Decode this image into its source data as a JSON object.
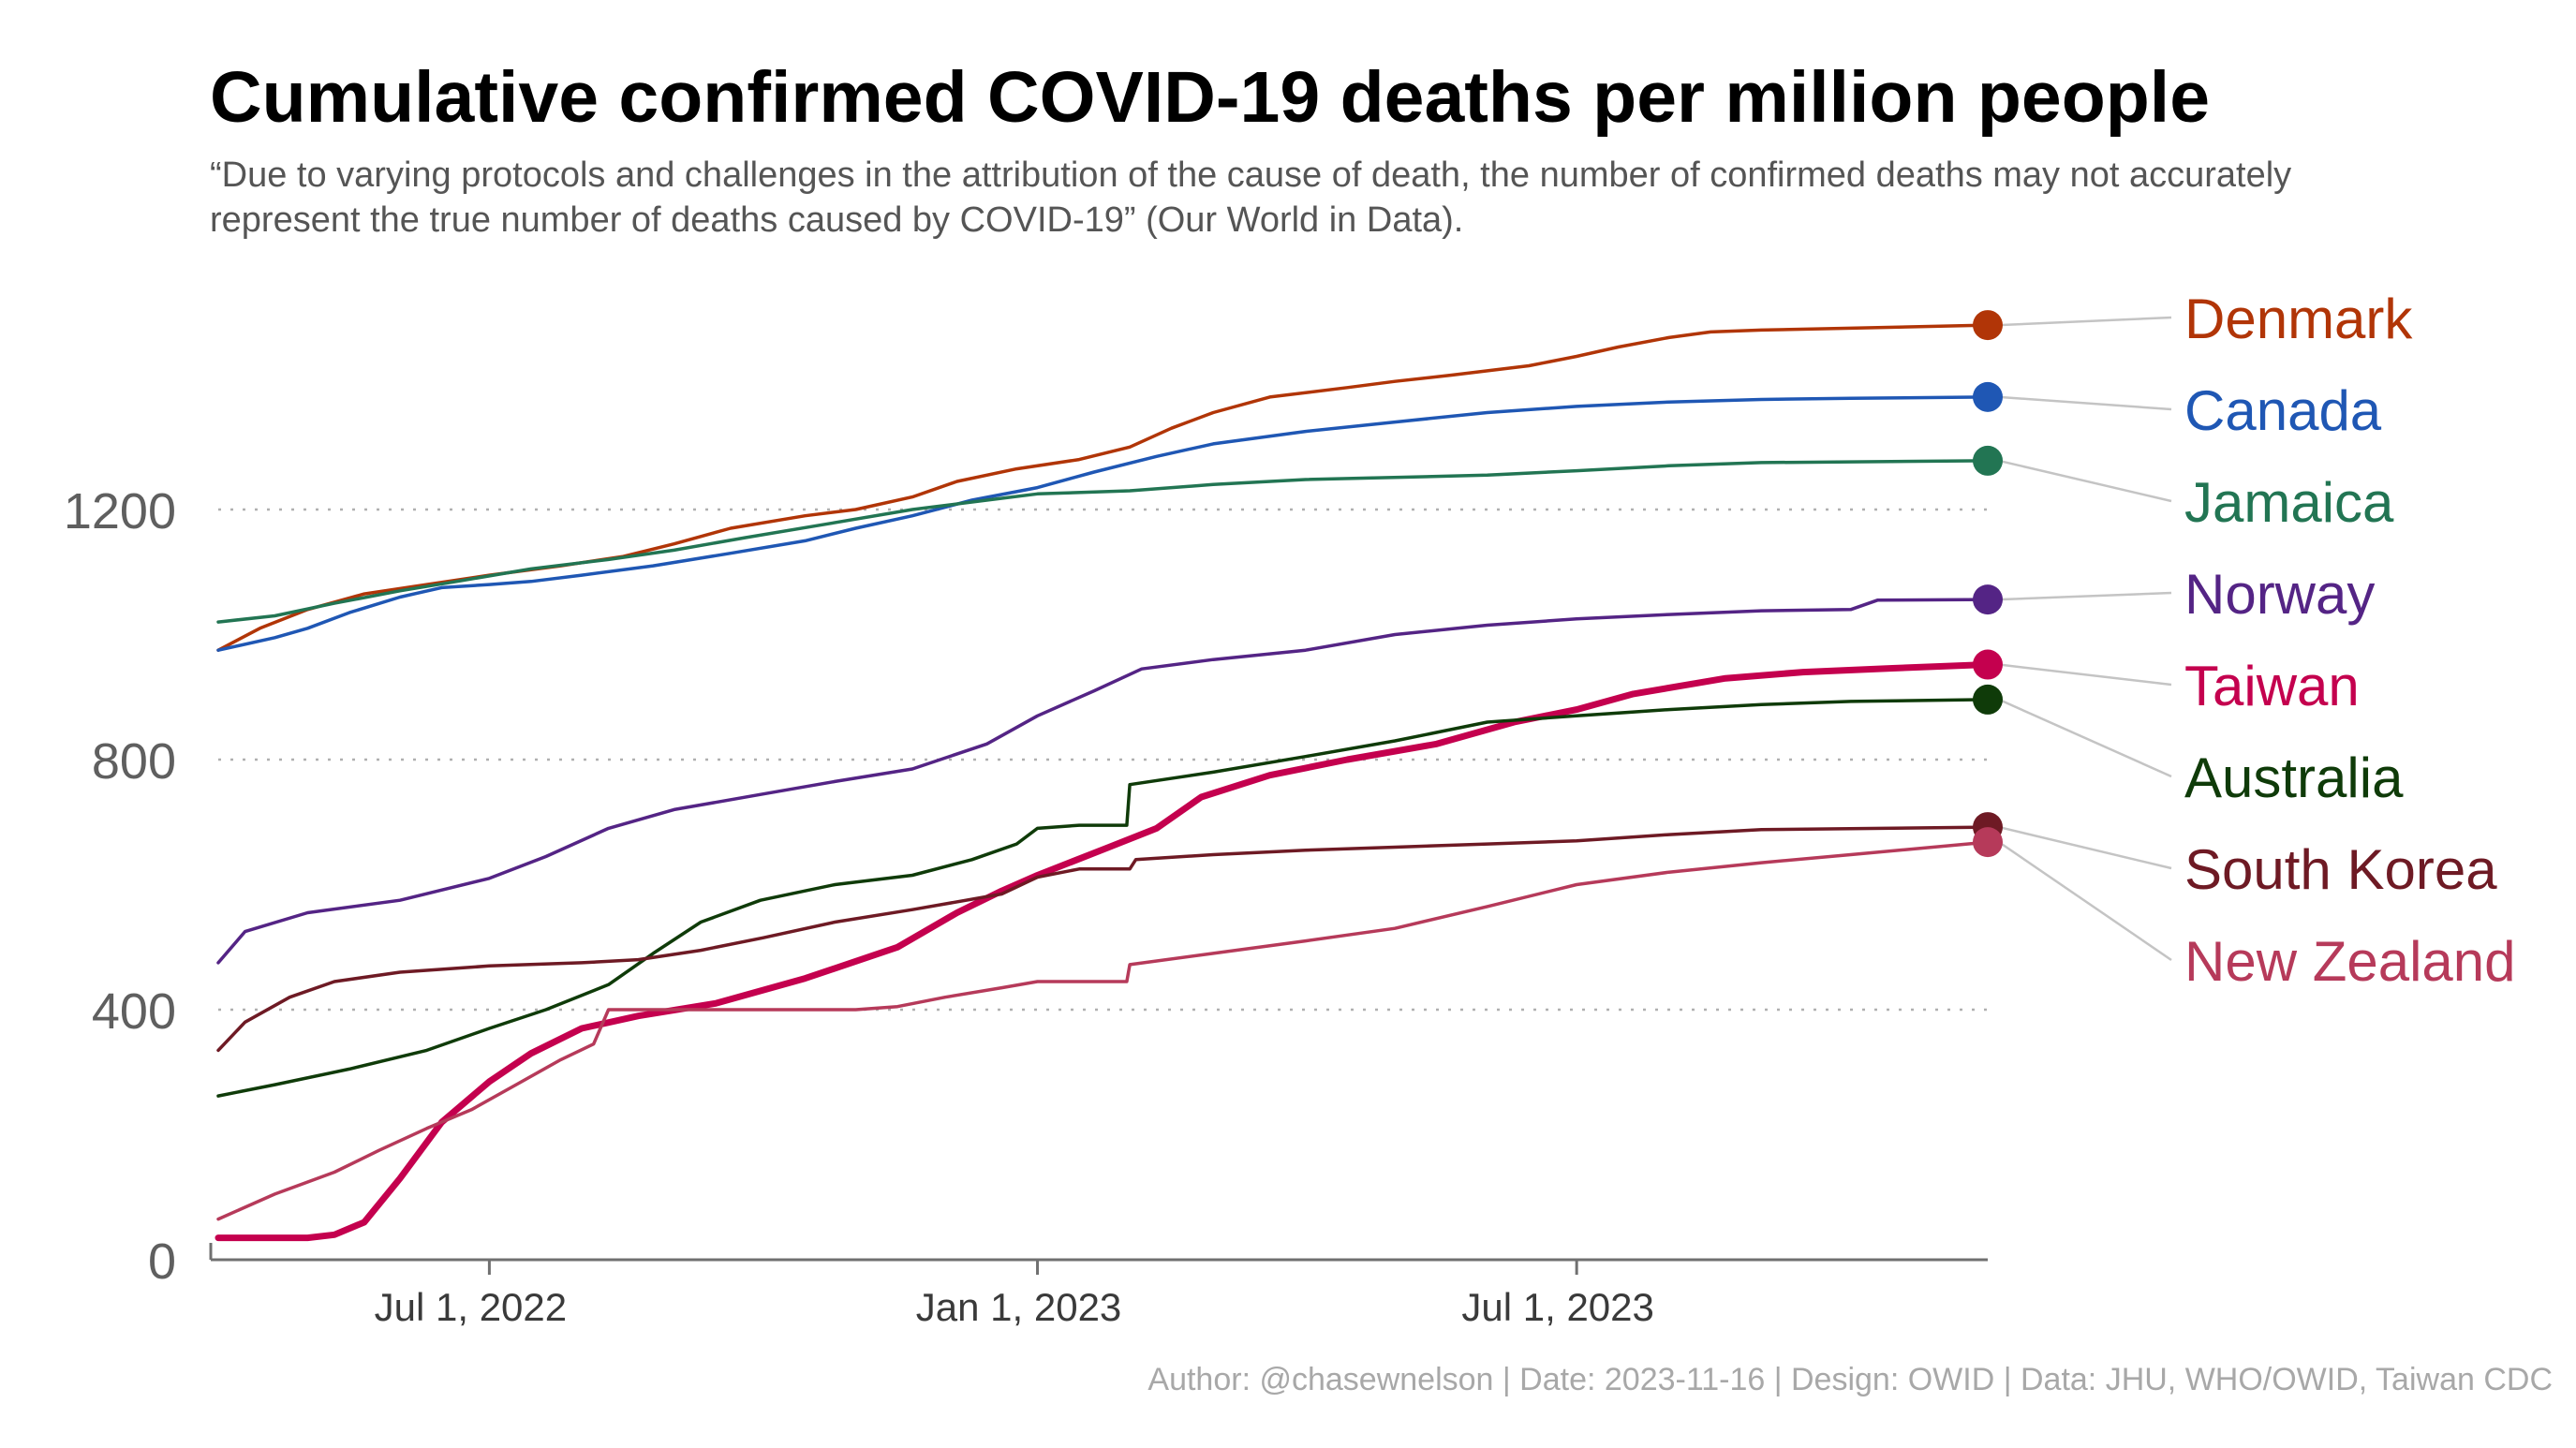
{
  "title": "Cumulative confirmed COVID-19 deaths per million people",
  "subtitle": "“Due to varying protocols and challenges in the attribution of the cause of death, the number of confirmed deaths may not accurately represent the true number of deaths caused by COVID-19” (Our World in Data).",
  "caption": "Author: @chasewnelson | Date: 2023-11-16 | Design: OWID | Data: JHU, WHO/OWID, Taiwan CDC",
  "chart_data": {
    "type": "line",
    "title": "Cumulative confirmed COVID-19 deaths per million people",
    "xlabel": "",
    "ylabel": "",
    "xlim": [
      "2022-04-01",
      "2023-11-16"
    ],
    "ylim": [
      0,
      1560
    ],
    "grid": "horizontal dotted at 400, 800, 1200",
    "legend": "direct labels at right end of lines",
    "x_ticks": [
      {
        "date": "2022-07-01",
        "label": "Jul 1, 2022"
      },
      {
        "date": "2023-01-01",
        "label": "Jan 1, 2023"
      },
      {
        "date": "2023-07-01",
        "label": "Jul 1, 2023"
      }
    ],
    "y_ticks": [
      {
        "value": 0,
        "label": "0"
      },
      {
        "value": 400,
        "label": "400"
      },
      {
        "value": 800,
        "label": "800"
      },
      {
        "value": 1200,
        "label": "1200"
      }
    ],
    "series": [
      {
        "name": "Denmark",
        "color": "#b13507",
        "width": 3.5,
        "points": [
          [
            "2022-04-01",
            975
          ],
          [
            "2022-04-15",
            1010
          ],
          [
            "2022-05-01",
            1040
          ],
          [
            "2022-05-20",
            1065
          ],
          [
            "2022-06-10",
            1080
          ],
          [
            "2022-07-01",
            1095
          ],
          [
            "2022-07-25",
            1110
          ],
          [
            "2022-08-15",
            1125
          ],
          [
            "2022-09-01",
            1145
          ],
          [
            "2022-09-20",
            1170
          ],
          [
            "2022-10-15",
            1190
          ],
          [
            "2022-11-01",
            1200
          ],
          [
            "2022-11-20",
            1220
          ],
          [
            "2022-12-05",
            1245
          ],
          [
            "2022-12-25",
            1265
          ],
          [
            "2023-01-15",
            1280
          ],
          [
            "2023-02-01",
            1300
          ],
          [
            "2023-02-15",
            1330
          ],
          [
            "2023-03-01",
            1355
          ],
          [
            "2023-03-20",
            1380
          ],
          [
            "2023-04-15",
            1395
          ],
          [
            "2023-05-01",
            1405
          ],
          [
            "2023-05-20",
            1415
          ],
          [
            "2023-06-15",
            1430
          ],
          [
            "2023-07-01",
            1445
          ],
          [
            "2023-07-15",
            1460
          ],
          [
            "2023-08-01",
            1475
          ],
          [
            "2023-08-15",
            1484
          ],
          [
            "2023-09-01",
            1487
          ],
          [
            "2023-10-01",
            1490
          ],
          [
            "2023-11-16",
            1495
          ]
        ]
      },
      {
        "name": "Canada",
        "color": "#1f57b4",
        "width": 3.5,
        "points": [
          [
            "2022-04-01",
            975
          ],
          [
            "2022-04-20",
            995
          ],
          [
            "2022-05-01",
            1010
          ],
          [
            "2022-05-15",
            1035
          ],
          [
            "2022-06-01",
            1060
          ],
          [
            "2022-06-15",
            1075
          ],
          [
            "2022-07-01",
            1080
          ],
          [
            "2022-07-15",
            1085
          ],
          [
            "2022-08-01",
            1095
          ],
          [
            "2022-08-25",
            1110
          ],
          [
            "2022-09-20",
            1130
          ],
          [
            "2022-10-15",
            1150
          ],
          [
            "2022-11-01",
            1170
          ],
          [
            "2022-11-20",
            1190
          ],
          [
            "2022-12-10",
            1215
          ],
          [
            "2023-01-01",
            1235
          ],
          [
            "2023-01-20",
            1260
          ],
          [
            "2023-02-10",
            1285
          ],
          [
            "2023-03-01",
            1305
          ],
          [
            "2023-04-01",
            1325
          ],
          [
            "2023-05-01",
            1340
          ],
          [
            "2023-06-01",
            1355
          ],
          [
            "2023-07-01",
            1365
          ],
          [
            "2023-08-01",
            1372
          ],
          [
            "2023-09-01",
            1376
          ],
          [
            "2023-10-01",
            1378
          ],
          [
            "2023-11-16",
            1380
          ]
        ]
      },
      {
        "name": "Jamaica",
        "color": "#227553",
        "width": 3.5,
        "points": [
          [
            "2022-04-01",
            1020
          ],
          [
            "2022-04-20",
            1030
          ],
          [
            "2022-05-10",
            1050
          ],
          [
            "2022-06-01",
            1070
          ],
          [
            "2022-06-20",
            1085
          ],
          [
            "2022-07-15",
            1105
          ],
          [
            "2022-08-10",
            1120
          ],
          [
            "2022-09-01",
            1135
          ],
          [
            "2022-09-25",
            1155
          ],
          [
            "2022-10-20",
            1175
          ],
          [
            "2022-11-20",
            1200
          ],
          [
            "2022-12-15",
            1215
          ],
          [
            "2023-01-01",
            1225
          ],
          [
            "2023-02-01",
            1230
          ],
          [
            "2023-03-01",
            1240
          ],
          [
            "2023-04-01",
            1248
          ],
          [
            "2023-06-01",
            1255
          ],
          [
            "2023-07-01",
            1262
          ],
          [
            "2023-08-01",
            1270
          ],
          [
            "2023-09-01",
            1275
          ],
          [
            "2023-11-16",
            1278
          ]
        ]
      },
      {
        "name": "Norway",
        "color": "#542485",
        "width": 3.5,
        "points": [
          [
            "2022-04-01",
            475
          ],
          [
            "2022-04-10",
            525
          ],
          [
            "2022-05-01",
            555
          ],
          [
            "2022-06-01",
            575
          ],
          [
            "2022-07-01",
            610
          ],
          [
            "2022-07-20",
            645
          ],
          [
            "2022-08-10",
            690
          ],
          [
            "2022-09-01",
            720
          ],
          [
            "2022-10-01",
            745
          ],
          [
            "2022-10-25",
            765
          ],
          [
            "2022-11-20",
            785
          ],
          [
            "2022-12-15",
            825
          ],
          [
            "2023-01-01",
            870
          ],
          [
            "2023-01-20",
            910
          ],
          [
            "2023-02-05",
            945
          ],
          [
            "2023-03-01",
            960
          ],
          [
            "2023-04-01",
            975
          ],
          [
            "2023-05-01",
            1000
          ],
          [
            "2023-06-01",
            1015
          ],
          [
            "2023-07-01",
            1025
          ],
          [
            "2023-08-01",
            1032
          ],
          [
            "2023-09-01",
            1038
          ],
          [
            "2023-10-01",
            1040
          ],
          [
            "2023-10-10",
            1055
          ],
          [
            "2023-11-16",
            1056
          ]
        ]
      },
      {
        "name": "Taiwan",
        "color": "#c4004e",
        "width": 7,
        "points": [
          [
            "2022-04-01",
            35
          ],
          [
            "2022-04-15",
            35
          ],
          [
            "2022-05-01",
            35
          ],
          [
            "2022-05-10",
            40
          ],
          [
            "2022-05-20",
            60
          ],
          [
            "2022-06-01",
            130
          ],
          [
            "2022-06-15",
            220
          ],
          [
            "2022-07-01",
            285
          ],
          [
            "2022-07-15",
            330
          ],
          [
            "2022-08-01",
            370
          ],
          [
            "2022-08-20",
            390
          ],
          [
            "2022-09-15",
            410
          ],
          [
            "2022-10-15",
            450
          ],
          [
            "2022-11-15",
            500
          ],
          [
            "2022-12-05",
            555
          ],
          [
            "2022-12-20",
            590
          ],
          [
            "2023-01-01",
            615
          ],
          [
            "2023-01-25",
            660
          ],
          [
            "2023-02-10",
            690
          ],
          [
            "2023-02-25",
            740
          ],
          [
            "2023-03-20",
            775
          ],
          [
            "2023-04-15",
            800
          ],
          [
            "2023-05-15",
            825
          ],
          [
            "2023-06-10",
            860
          ],
          [
            "2023-07-01",
            880
          ],
          [
            "2023-07-20",
            905
          ],
          [
            "2023-08-20",
            930
          ],
          [
            "2023-09-15",
            940
          ],
          [
            "2023-10-15",
            946
          ],
          [
            "2023-11-16",
            952
          ]
        ]
      },
      {
        "name": "Australia",
        "color": "#0f3b09",
        "width": 3.5,
        "points": [
          [
            "2022-04-01",
            262
          ],
          [
            "2022-04-20",
            280
          ],
          [
            "2022-05-15",
            305
          ],
          [
            "2022-06-10",
            335
          ],
          [
            "2022-07-01",
            370
          ],
          [
            "2022-07-20",
            400
          ],
          [
            "2022-08-10",
            440
          ],
          [
            "2022-08-25",
            490
          ],
          [
            "2022-09-10",
            540
          ],
          [
            "2022-09-30",
            575
          ],
          [
            "2022-10-25",
            600
          ],
          [
            "2022-11-20",
            615
          ],
          [
            "2022-12-10",
            640
          ],
          [
            "2022-12-25",
            665
          ],
          [
            "2023-01-01",
            690
          ],
          [
            "2023-01-15",
            695
          ],
          [
            "2023-01-31",
            695
          ],
          [
            "2023-02-01",
            760
          ],
          [
            "2023-03-01",
            780
          ],
          [
            "2023-04-01",
            805
          ],
          [
            "2023-05-01",
            830
          ],
          [
            "2023-06-01",
            860
          ],
          [
            "2023-07-01",
            870
          ],
          [
            "2023-08-01",
            880
          ],
          [
            "2023-09-01",
            888
          ],
          [
            "2023-10-01",
            893
          ],
          [
            "2023-11-16",
            896
          ]
        ]
      },
      {
        "name": "South Korea",
        "color": "#6e1a24",
        "width": 3.5,
        "points": [
          [
            "2022-04-01",
            335
          ],
          [
            "2022-04-10",
            380
          ],
          [
            "2022-04-25",
            420
          ],
          [
            "2022-05-10",
            445
          ],
          [
            "2022-06-01",
            460
          ],
          [
            "2022-07-01",
            470
          ],
          [
            "2022-08-01",
            475
          ],
          [
            "2022-08-20",
            480
          ],
          [
            "2022-09-10",
            495
          ],
          [
            "2022-10-01",
            515
          ],
          [
            "2022-10-25",
            540
          ],
          [
            "2022-11-20",
            560
          ],
          [
            "2022-12-20",
            585
          ],
          [
            "2023-01-01",
            612
          ],
          [
            "2023-01-15",
            625
          ],
          [
            "2023-02-01",
            625
          ],
          [
            "2023-02-03",
            640
          ],
          [
            "2023-03-01",
            648
          ],
          [
            "2023-04-01",
            655
          ],
          [
            "2023-05-01",
            660
          ],
          [
            "2023-06-01",
            665
          ],
          [
            "2023-07-01",
            670
          ],
          [
            "2023-08-01",
            680
          ],
          [
            "2023-09-01",
            688
          ],
          [
            "2023-11-16",
            692
          ]
        ]
      },
      {
        "name": "New Zealand",
        "color": "#b63a5a",
        "width": 3.5,
        "points": [
          [
            "2022-04-01",
            65
          ],
          [
            "2022-04-20",
            105
          ],
          [
            "2022-05-10",
            140
          ],
          [
            "2022-05-25",
            175
          ],
          [
            "2022-06-10",
            210
          ],
          [
            "2022-06-25",
            240
          ],
          [
            "2022-07-10",
            280
          ],
          [
            "2022-07-25",
            320
          ],
          [
            "2022-08-05",
            345
          ],
          [
            "2022-08-10",
            400
          ],
          [
            "2022-09-01",
            400
          ],
          [
            "2022-10-01",
            400
          ],
          [
            "2022-11-01",
            400
          ],
          [
            "2022-11-15",
            405
          ],
          [
            "2022-12-01",
            420
          ],
          [
            "2022-12-20",
            435
          ],
          [
            "2023-01-01",
            445
          ],
          [
            "2023-01-31",
            445
          ],
          [
            "2023-02-01",
            472
          ],
          [
            "2023-03-01",
            490
          ],
          [
            "2023-04-01",
            510
          ],
          [
            "2023-05-01",
            530
          ],
          [
            "2023-06-01",
            565
          ],
          [
            "2023-07-01",
            600
          ],
          [
            "2023-08-01",
            620
          ],
          [
            "2023-09-01",
            635
          ],
          [
            "2023-10-01",
            648
          ],
          [
            "2023-11-16",
            668
          ]
        ]
      }
    ]
  }
}
